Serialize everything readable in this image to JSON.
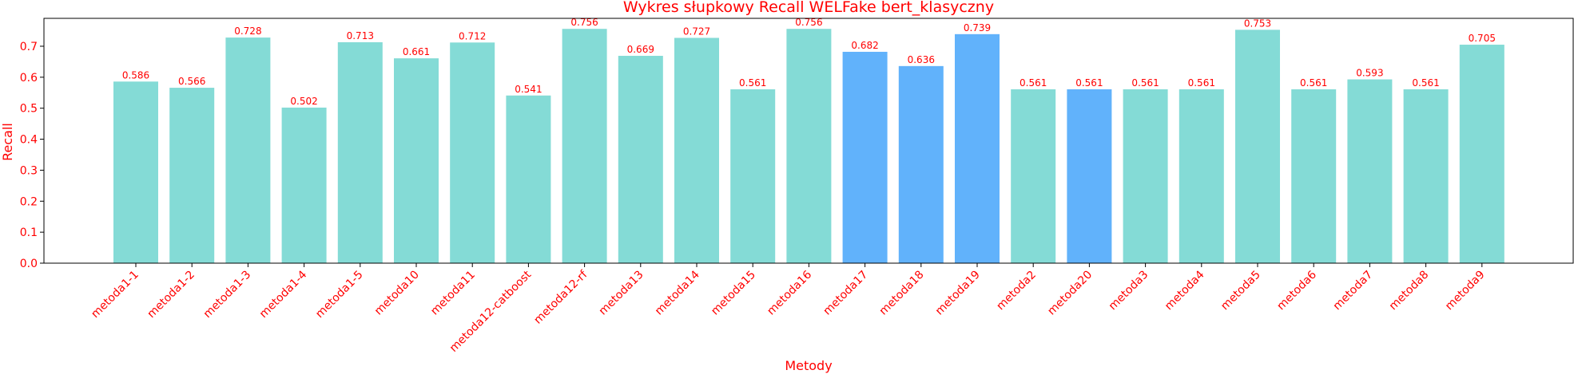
{
  "chart_data": {
    "type": "bar",
    "title": "Wykres słupkowy Recall WELFake bert_klasyczny",
    "xlabel": "Metody",
    "ylabel": "Recall",
    "categories": [
      "metoda1-1",
      "metoda1-2",
      "metoda1-3",
      "metoda1-4",
      "metoda1-5",
      "metoda10",
      "metoda11",
      "metoda12-catboost",
      "metoda12-rf",
      "metoda13",
      "metoda14",
      "metoda15",
      "metoda16",
      "metoda17",
      "metoda18",
      "metoda19",
      "metoda2",
      "metoda20",
      "metoda3",
      "metoda4",
      "metoda5",
      "metoda6",
      "metoda7",
      "metoda8",
      "metoda9"
    ],
    "values": [
      0.586,
      0.566,
      0.728,
      0.502,
      0.713,
      0.661,
      0.712,
      0.541,
      0.756,
      0.669,
      0.727,
      0.561,
      0.756,
      0.682,
      0.636,
      0.739,
      0.561,
      0.561,
      0.561,
      0.561,
      0.753,
      0.561,
      0.593,
      0.561,
      0.705
    ],
    "value_labels": [
      "0.586",
      "0.566",
      "0.728",
      "0.502",
      "0.713",
      "0.661",
      "0.712",
      "0.541",
      "0.756",
      "0.669",
      "0.727",
      "0.561",
      "0.756",
      "0.682",
      "0.636",
      "0.739",
      "0.561",
      "0.561",
      "0.561",
      "0.561",
      "0.753",
      "0.561",
      "0.593",
      "0.561",
      "0.705"
    ],
    "highlighted": [
      "metoda17",
      "metoda18",
      "metoda19",
      "metoda20"
    ],
    "ylim": [
      0,
      0.79
    ],
    "yticks": [
      "0.0",
      "0.1",
      "0.2",
      "0.3",
      "0.4",
      "0.5",
      "0.6",
      "0.7"
    ],
    "grid": false,
    "colors": {
      "bar": "#84dbd6",
      "bar_highlight": "#61b2fb",
      "text": "#ff0000",
      "axis": "#000000"
    }
  }
}
